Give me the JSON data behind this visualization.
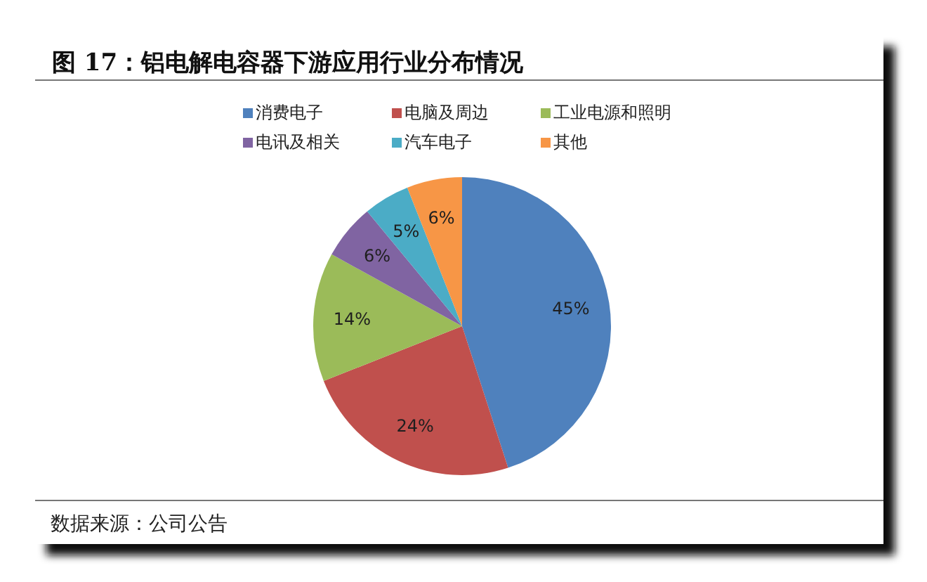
{
  "chart_data": {
    "type": "pie",
    "title": "图 17：铝电解电容器下游应用行业分布情况",
    "categories": [
      "消费电子",
      "电脑及周边",
      "工业电源和照明",
      "电讯及相关",
      "汽车电子",
      "其他"
    ],
    "values": [
      45,
      24,
      14,
      6,
      5,
      6
    ],
    "colors": [
      "#4f81bd",
      "#c0504d",
      "#9bbb59",
      "#8064a2",
      "#4bacc6",
      "#f79646"
    ],
    "value_labels": [
      "45%",
      "24%",
      "14%",
      "6%",
      "5%",
      "6%"
    ],
    "legend": "top",
    "annotations": [
      "数据来源：公司公告"
    ]
  }
}
